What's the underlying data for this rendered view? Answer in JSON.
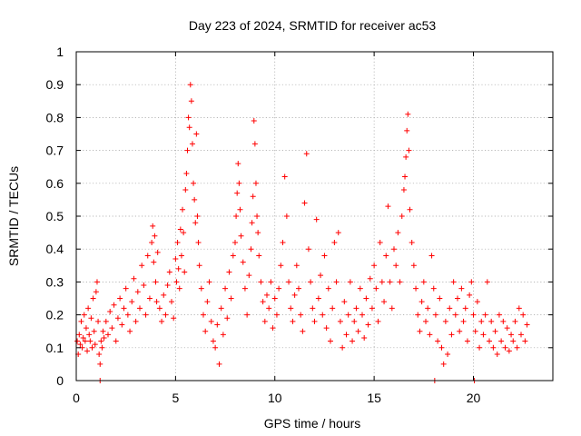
{
  "chart_data": {
    "type": "scatter",
    "title": "Day 223 of 2024, SRMTID for receiver ac53",
    "xlabel": "GPS time / hours",
    "ylabel": "SRMTID / TECUs",
    "xlim": [
      0,
      24
    ],
    "ylim": [
      0,
      1
    ],
    "x_ticks": [
      0,
      5,
      10,
      15,
      20
    ],
    "x_tick_labels": [
      "0",
      "5",
      "10",
      "15",
      "20"
    ],
    "y_ticks": [
      0,
      0.1,
      0.2,
      0.3,
      0.4,
      0.5,
      0.6,
      0.7,
      0.8,
      0.9,
      1
    ],
    "y_tick_labels": [
      "0",
      "0.1",
      "0.2",
      "0.3",
      "0.4",
      "0.5",
      "0.6",
      "0.7",
      "0.8",
      "0.9",
      "1"
    ],
    "grid": true,
    "marker": "+",
    "series": [
      {
        "name": "SRMTID",
        "color": "#ff0000",
        "points": [
          [
            0.05,
            0.12
          ],
          [
            0.1,
            0.08
          ],
          [
            0.15,
            0.14
          ],
          [
            0.2,
            0.11
          ],
          [
            0.25,
            0.18
          ],
          [
            0.3,
            0.1
          ],
          [
            0.35,
            0.13
          ],
          [
            0.4,
            0.2
          ],
          [
            0.45,
            0.12
          ],
          [
            0.5,
            0.16
          ],
          [
            0.55,
            0.09
          ],
          [
            0.6,
            0.22
          ],
          [
            0.65,
            0.14
          ],
          [
            0.7,
            0.12
          ],
          [
            0.75,
            0.19
          ],
          [
            0.8,
            0.1
          ],
          [
            0.85,
            0.25
          ],
          [
            0.9,
            0.15
          ],
          [
            0.95,
            0.11
          ],
          [
            1.0,
            0.27
          ],
          [
            1.05,
            0.3
          ],
          [
            1.1,
            0.18
          ],
          [
            1.15,
            0.08
          ],
          [
            1.2,
            0.05
          ],
          [
            1.2,
            0.0
          ],
          [
            1.25,
            0.12
          ],
          [
            1.3,
            0.1
          ],
          [
            1.35,
            0.15
          ],
          [
            1.4,
            0.13
          ],
          [
            1.5,
            0.18
          ],
          [
            1.6,
            0.14
          ],
          [
            1.7,
            0.21
          ],
          [
            1.8,
            0.16
          ],
          [
            1.9,
            0.23
          ],
          [
            2.0,
            0.12
          ],
          [
            2.1,
            0.19
          ],
          [
            2.2,
            0.25
          ],
          [
            2.3,
            0.17
          ],
          [
            2.4,
            0.22
          ],
          [
            2.5,
            0.28
          ],
          [
            2.6,
            0.2
          ],
          [
            2.7,
            0.15
          ],
          [
            2.8,
            0.24
          ],
          [
            2.9,
            0.31
          ],
          [
            3.0,
            0.18
          ],
          [
            3.1,
            0.27
          ],
          [
            3.2,
            0.22
          ],
          [
            3.3,
            0.35
          ],
          [
            3.4,
            0.29
          ],
          [
            3.5,
            0.2
          ],
          [
            3.6,
            0.38
          ],
          [
            3.7,
            0.25
          ],
          [
            3.8,
            0.42
          ],
          [
            3.85,
            0.47
          ],
          [
            3.9,
            0.36
          ],
          [
            3.95,
            0.44
          ],
          [
            4.0,
            0.3
          ],
          [
            4.05,
            0.24
          ],
          [
            4.1,
            0.39
          ],
          [
            4.2,
            0.22
          ],
          [
            4.3,
            0.18
          ],
          [
            4.4,
            0.26
          ],
          [
            4.5,
            0.2
          ],
          [
            4.6,
            0.29
          ],
          [
            4.7,
            0.33
          ],
          [
            4.8,
            0.24
          ],
          [
            4.9,
            0.19
          ],
          [
            5.0,
            0.37
          ],
          [
            5.05,
            0.3
          ],
          [
            5.1,
            0.42
          ],
          [
            5.15,
            0.34
          ],
          [
            5.2,
            0.28
          ],
          [
            5.25,
            0.46
          ],
          [
            5.3,
            0.38
          ],
          [
            5.35,
            0.52
          ],
          [
            5.4,
            0.45
          ],
          [
            5.45,
            0.33
          ],
          [
            5.5,
            0.58
          ],
          [
            5.55,
            0.63
          ],
          [
            5.6,
            0.7
          ],
          [
            5.65,
            0.8
          ],
          [
            5.7,
            0.77
          ],
          [
            5.75,
            0.9
          ],
          [
            5.8,
            0.85
          ],
          [
            5.85,
            0.72
          ],
          [
            5.9,
            0.6
          ],
          [
            5.95,
            0.55
          ],
          [
            6.0,
            0.48
          ],
          [
            6.05,
            0.75
          ],
          [
            6.1,
            0.5
          ],
          [
            6.15,
            0.42
          ],
          [
            6.2,
            0.35
          ],
          [
            6.3,
            0.28
          ],
          [
            6.4,
            0.2
          ],
          [
            6.5,
            0.15
          ],
          [
            6.6,
            0.24
          ],
          [
            6.7,
            0.3
          ],
          [
            6.8,
            0.18
          ],
          [
            6.9,
            0.12
          ],
          [
            7.0,
            0.1
          ],
          [
            7.1,
            0.17
          ],
          [
            7.2,
            0.05
          ],
          [
            7.3,
            0.22
          ],
          [
            7.4,
            0.14
          ],
          [
            7.5,
            0.28
          ],
          [
            7.6,
            0.19
          ],
          [
            7.7,
            0.33
          ],
          [
            7.8,
            0.25
          ],
          [
            7.9,
            0.38
          ],
          [
            8.0,
            0.42
          ],
          [
            8.05,
            0.5
          ],
          [
            8.1,
            0.57
          ],
          [
            8.15,
            0.66
          ],
          [
            8.2,
            0.6
          ],
          [
            8.25,
            0.52
          ],
          [
            8.3,
            0.44
          ],
          [
            8.4,
            0.36
          ],
          [
            8.5,
            0.28
          ],
          [
            8.6,
            0.2
          ],
          [
            8.7,
            0.32
          ],
          [
            8.8,
            0.4
          ],
          [
            8.85,
            0.48
          ],
          [
            8.9,
            0.56
          ],
          [
            8.95,
            0.79
          ],
          [
            9.0,
            0.72
          ],
          [
            9.05,
            0.6
          ],
          [
            9.1,
            0.5
          ],
          [
            9.15,
            0.45
          ],
          [
            9.2,
            0.38
          ],
          [
            9.3,
            0.3
          ],
          [
            9.4,
            0.24
          ],
          [
            9.5,
            0.18
          ],
          [
            9.6,
            0.26
          ],
          [
            9.7,
            0.22
          ],
          [
            9.8,
            0.3
          ],
          [
            9.9,
            0.16
          ],
          [
            10.0,
            0.25
          ],
          [
            10.1,
            0.2
          ],
          [
            10.2,
            0.28
          ],
          [
            10.3,
            0.35
          ],
          [
            10.4,
            0.42
          ],
          [
            10.5,
            0.62
          ],
          [
            10.6,
            0.5
          ],
          [
            10.7,
            0.3
          ],
          [
            10.8,
            0.22
          ],
          [
            10.9,
            0.18
          ],
          [
            11.0,
            0.26
          ],
          [
            11.1,
            0.35
          ],
          [
            11.2,
            0.28
          ],
          [
            11.3,
            0.2
          ],
          [
            11.4,
            0.15
          ],
          [
            11.5,
            0.54
          ],
          [
            11.6,
            0.69
          ],
          [
            11.7,
            0.4
          ],
          [
            11.8,
            0.3
          ],
          [
            11.9,
            0.22
          ],
          [
            12.0,
            0.18
          ],
          [
            12.1,
            0.49
          ],
          [
            12.2,
            0.25
          ],
          [
            12.3,
            0.32
          ],
          [
            12.4,
            0.2
          ],
          [
            12.5,
            0.38
          ],
          [
            12.6,
            0.16
          ],
          [
            12.7,
            0.28
          ],
          [
            12.8,
            0.12
          ],
          [
            12.9,
            0.22
          ],
          [
            13.0,
            0.42
          ],
          [
            13.1,
            0.3
          ],
          [
            13.2,
            0.45
          ],
          [
            13.3,
            0.18
          ],
          [
            13.4,
            0.1
          ],
          [
            13.5,
            0.24
          ],
          [
            13.6,
            0.14
          ],
          [
            13.7,
            0.2
          ],
          [
            13.8,
            0.3
          ],
          [
            13.9,
            0.12
          ],
          [
            14.0,
            0.18
          ],
          [
            14.1,
            0.22
          ],
          [
            14.2,
            0.15
          ],
          [
            14.3,
            0.28
          ],
          [
            14.4,
            0.2
          ],
          [
            14.5,
            0.13
          ],
          [
            14.6,
            0.25
          ],
          [
            14.7,
            0.17
          ],
          [
            14.8,
            0.31
          ],
          [
            14.9,
            0.22
          ],
          [
            15.0,
            0.35
          ],
          [
            15.1,
            0.28
          ],
          [
            15.2,
            0.18
          ],
          [
            15.3,
            0.42
          ],
          [
            15.4,
            0.3
          ],
          [
            15.5,
            0.24
          ],
          [
            15.6,
            0.38
          ],
          [
            15.7,
            0.53
          ],
          [
            15.8,
            0.3
          ],
          [
            15.9,
            0.22
          ],
          [
            16.0,
            0.4
          ],
          [
            16.1,
            0.35
          ],
          [
            16.2,
            0.45
          ],
          [
            16.3,
            0.3
          ],
          [
            16.4,
            0.5
          ],
          [
            16.5,
            0.58
          ],
          [
            16.55,
            0.62
          ],
          [
            16.6,
            0.68
          ],
          [
            16.65,
            0.76
          ],
          [
            16.7,
            0.81
          ],
          [
            16.75,
            0.7
          ],
          [
            16.8,
            0.52
          ],
          [
            16.9,
            0.42
          ],
          [
            17.0,
            0.35
          ],
          [
            17.1,
            0.28
          ],
          [
            17.2,
            0.2
          ],
          [
            17.3,
            0.15
          ],
          [
            17.4,
            0.24
          ],
          [
            17.5,
            0.3
          ],
          [
            17.6,
            0.18
          ],
          [
            17.7,
            0.22
          ],
          [
            17.8,
            0.14
          ],
          [
            17.9,
            0.38
          ],
          [
            18.0,
            0.28
          ],
          [
            18.05,
            0.0
          ],
          [
            18.1,
            0.2
          ],
          [
            18.2,
            0.12
          ],
          [
            18.3,
            0.25
          ],
          [
            18.4,
            0.1
          ],
          [
            18.5,
            0.05
          ],
          [
            18.6,
            0.18
          ],
          [
            18.7,
            0.08
          ],
          [
            18.8,
            0.22
          ],
          [
            18.9,
            0.14
          ],
          [
            19.0,
            0.3
          ],
          [
            19.1,
            0.2
          ],
          [
            19.2,
            0.25
          ],
          [
            19.3,
            0.15
          ],
          [
            19.4,
            0.28
          ],
          [
            19.5,
            0.18
          ],
          [
            19.6,
            0.22
          ],
          [
            19.7,
            0.12
          ],
          [
            19.8,
            0.26
          ],
          [
            19.9,
            0.3
          ],
          [
            20.0,
            0.2
          ],
          [
            20.05,
            0.0
          ],
          [
            20.1,
            0.15
          ],
          [
            20.2,
            0.24
          ],
          [
            20.3,
            0.1
          ],
          [
            20.4,
            0.18
          ],
          [
            20.5,
            0.14
          ],
          [
            20.6,
            0.2
          ],
          [
            20.7,
            0.3
          ],
          [
            20.8,
            0.12
          ],
          [
            20.9,
            0.18
          ],
          [
            21.0,
            0.1
          ],
          [
            21.1,
            0.15
          ],
          [
            21.2,
            0.08
          ],
          [
            21.3,
            0.2
          ],
          [
            21.4,
            0.12
          ],
          [
            21.5,
            0.18
          ],
          [
            21.6,
            0.1
          ],
          [
            21.7,
            0.16
          ],
          [
            21.8,
            0.09
          ],
          [
            21.9,
            0.14
          ],
          [
            22.0,
            0.12
          ],
          [
            22.1,
            0.18
          ],
          [
            22.2,
            0.1
          ],
          [
            22.3,
            0.22
          ],
          [
            22.4,
            0.14
          ],
          [
            22.5,
            0.2
          ],
          [
            22.6,
            0.12
          ],
          [
            22.7,
            0.17
          ]
        ]
      }
    ]
  }
}
